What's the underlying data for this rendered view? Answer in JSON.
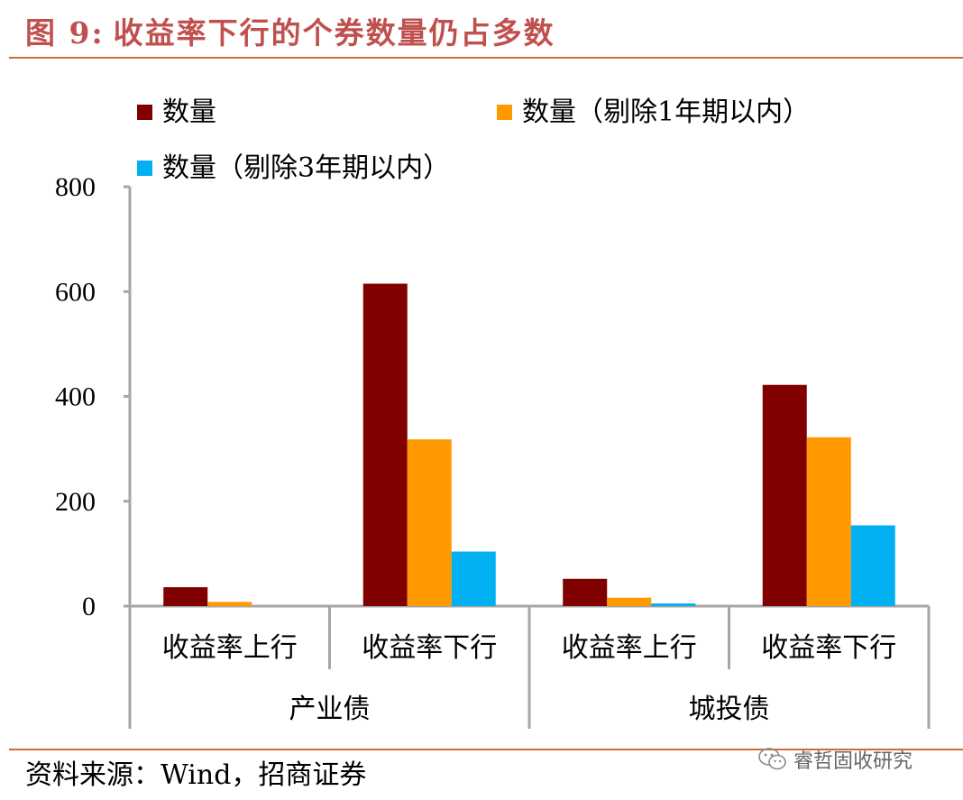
{
  "figure": {
    "label": "图 9:",
    "title": "收益率下行的个券数量仍占多数"
  },
  "source_text": "资料来源：Wind，招商证券",
  "watermark_text": "睿哲固收研究",
  "chart_data": {
    "type": "bar",
    "title": "收益率下行的个券数量仍占多数",
    "groups": [
      {
        "label": "产业债",
        "categories": [
          "收益率上行",
          "收益率下行"
        ]
      },
      {
        "label": "城投债",
        "categories": [
          "收益率上行",
          "收益率下行"
        ]
      }
    ],
    "categories": [
      "收益率上行",
      "收益率下行",
      "收益率上行",
      "收益率下行"
    ],
    "series": [
      {
        "name": "数量",
        "color": "#800000",
        "values": [
          36,
          615,
          52,
          422
        ]
      },
      {
        "name": "数量（剔除1年期以内）",
        "color": "#ff9900",
        "values": [
          8,
          318,
          16,
          322
        ]
      },
      {
        "name": "数量（剔除3年期以内）",
        "color": "#00b0f0",
        "values": [
          0,
          104,
          5,
          154
        ]
      }
    ],
    "ylim": [
      0,
      800
    ],
    "yticks": [
      0,
      200,
      400,
      600,
      800
    ],
    "xlabel": "",
    "ylabel": "",
    "grid": false,
    "legend_position": "top"
  }
}
